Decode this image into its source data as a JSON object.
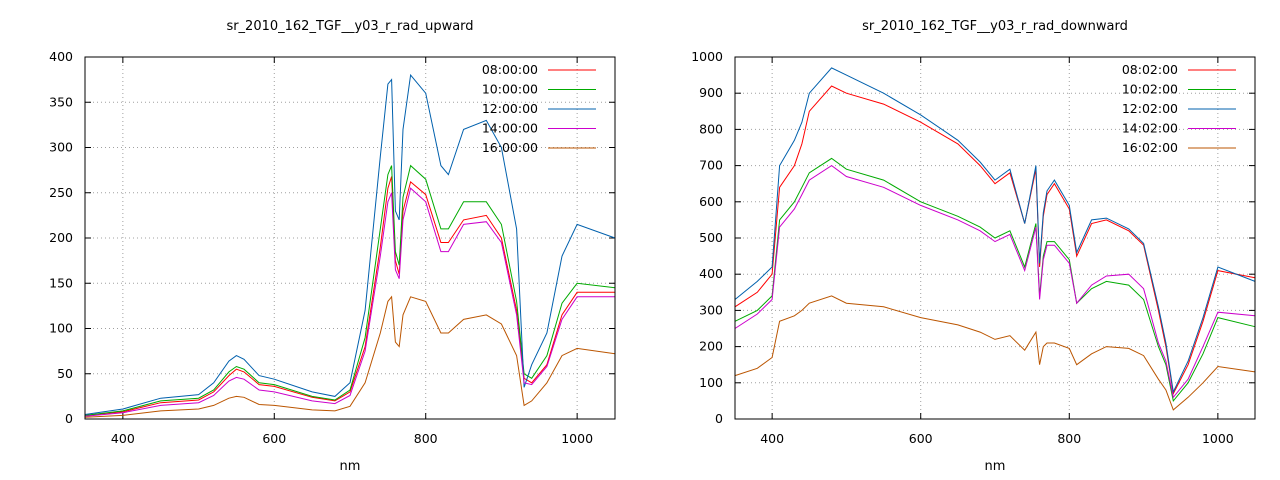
{
  "chart_data": [
    {
      "type": "line",
      "title": "sr_2010_162_TGF__y03_r_rad_upward",
      "xlabel": "nm",
      "ylabel": "",
      "xlim": [
        350,
        1050
      ],
      "ylim": [
        0,
        400
      ],
      "xticks": [
        400,
        600,
        800,
        1000
      ],
      "yticks": [
        0,
        50,
        100,
        150,
        200,
        250,
        300,
        350,
        400
      ],
      "grid": true,
      "legend_position": "top-right",
      "x": [
        350,
        400,
        450,
        500,
        520,
        540,
        550,
        560,
        580,
        600,
        650,
        680,
        700,
        720,
        740,
        750,
        755,
        760,
        765,
        770,
        780,
        800,
        820,
        830,
        850,
        880,
        900,
        920,
        930,
        940,
        960,
        980,
        1000,
        1050
      ],
      "series": [
        {
          "name": "08:00:00",
          "color": "#ff0000",
          "values": [
            4,
            8,
            18,
            21,
            30,
            48,
            55,
            52,
            38,
            36,
            24,
            20,
            30,
            80,
            190,
            255,
            268,
            175,
            160,
            230,
            262,
            248,
            195,
            195,
            220,
            225,
            200,
            120,
            45,
            40,
            60,
            115,
            140,
            140
          ]
        },
        {
          "name": "10:00:00",
          "color": "#00aa00",
          "values": [
            4,
            9,
            20,
            23,
            32,
            52,
            58,
            55,
            40,
            38,
            25,
            21,
            32,
            90,
            210,
            270,
            280,
            185,
            170,
            245,
            280,
            265,
            210,
            210,
            240,
            240,
            215,
            130,
            50,
            45,
            70,
            128,
            150,
            145
          ]
        },
        {
          "name": "12:00:00",
          "color": "#0060ad",
          "values": [
            5,
            11,
            23,
            27,
            40,
            64,
            70,
            66,
            48,
            44,
            30,
            25,
            40,
            120,
            290,
            370,
            375,
            230,
            220,
            320,
            380,
            360,
            280,
            270,
            320,
            330,
            300,
            210,
            35,
            60,
            95,
            180,
            215,
            200
          ]
        },
        {
          "name": "14:00:00",
          "color": "#cc00cc",
          "values": [
            3,
            7,
            15,
            18,
            26,
            42,
            46,
            44,
            32,
            30,
            20,
            17,
            26,
            75,
            180,
            240,
            250,
            165,
            155,
            220,
            255,
            240,
            185,
            185,
            215,
            218,
            195,
            115,
            40,
            38,
            58,
            110,
            135,
            135
          ]
        },
        {
          "name": "16:00:00",
          "color": "#bb5500",
          "values": [
            2,
            4,
            9,
            11,
            15,
            23,
            25,
            24,
            16,
            15,
            10,
            9,
            14,
            40,
            95,
            130,
            135,
            85,
            80,
            115,
            135,
            130,
            95,
            95,
            110,
            115,
            105,
            70,
            15,
            20,
            40,
            70,
            78,
            72
          ]
        }
      ]
    },
    {
      "type": "line",
      "title": "sr_2010_162_TGF__y03_r_rad_downward",
      "xlabel": "nm",
      "ylabel": "",
      "xlim": [
        350,
        1050
      ],
      "ylim": [
        0,
        1000
      ],
      "xticks": [
        400,
        600,
        800,
        1000
      ],
      "yticks": [
        0,
        100,
        200,
        300,
        400,
        500,
        600,
        700,
        800,
        900,
        1000
      ],
      "grid": true,
      "legend_position": "top-right",
      "x": [
        350,
        380,
        400,
        410,
        430,
        440,
        450,
        480,
        500,
        550,
        600,
        650,
        680,
        700,
        720,
        740,
        755,
        760,
        765,
        770,
        780,
        800,
        810,
        830,
        850,
        880,
        900,
        920,
        930,
        940,
        960,
        980,
        1000,
        1050
      ],
      "series": [
        {
          "name": "08:02:00",
          "color": "#ff0000",
          "values": [
            310,
            350,
            400,
            640,
            700,
            760,
            850,
            920,
            900,
            870,
            820,
            760,
            700,
            650,
            680,
            540,
            690,
            420,
            560,
            620,
            650,
            580,
            450,
            540,
            550,
            520,
            480,
            300,
            200,
            70,
            150,
            270,
            410,
            390
          ]
        },
        {
          "name": "10:02:00",
          "color": "#00aa00",
          "values": [
            270,
            300,
            340,
            550,
            600,
            640,
            680,
            720,
            690,
            660,
            600,
            560,
            530,
            500,
            520,
            420,
            540,
            340,
            450,
            490,
            490,
            440,
            320,
            360,
            380,
            370,
            330,
            200,
            150,
            50,
            100,
            180,
            280,
            255
          ]
        },
        {
          "name": "12:02:00",
          "color": "#0060ad",
          "values": [
            330,
            380,
            420,
            700,
            770,
            820,
            900,
            970,
            950,
            900,
            840,
            770,
            710,
            660,
            690,
            540,
            700,
            430,
            570,
            630,
            660,
            590,
            460,
            550,
            555,
            525,
            485,
            310,
            210,
            75,
            160,
            280,
            420,
            380
          ]
        },
        {
          "name": "14:02:00",
          "color": "#cc00cc",
          "values": [
            250,
            290,
            330,
            530,
            580,
            620,
            660,
            700,
            670,
            640,
            590,
            550,
            520,
            490,
            510,
            410,
            530,
            330,
            440,
            480,
            480,
            430,
            320,
            370,
            395,
            400,
            360,
            210,
            160,
            60,
            110,
            200,
            295,
            285
          ]
        },
        {
          "name": "16:02:00",
          "color": "#bb5500",
          "values": [
            120,
            140,
            170,
            270,
            285,
            300,
            320,
            340,
            320,
            310,
            280,
            260,
            240,
            220,
            230,
            190,
            240,
            150,
            200,
            210,
            210,
            195,
            150,
            180,
            200,
            195,
            175,
            110,
            80,
            25,
            60,
            100,
            145,
            130
          ]
        }
      ]
    }
  ]
}
